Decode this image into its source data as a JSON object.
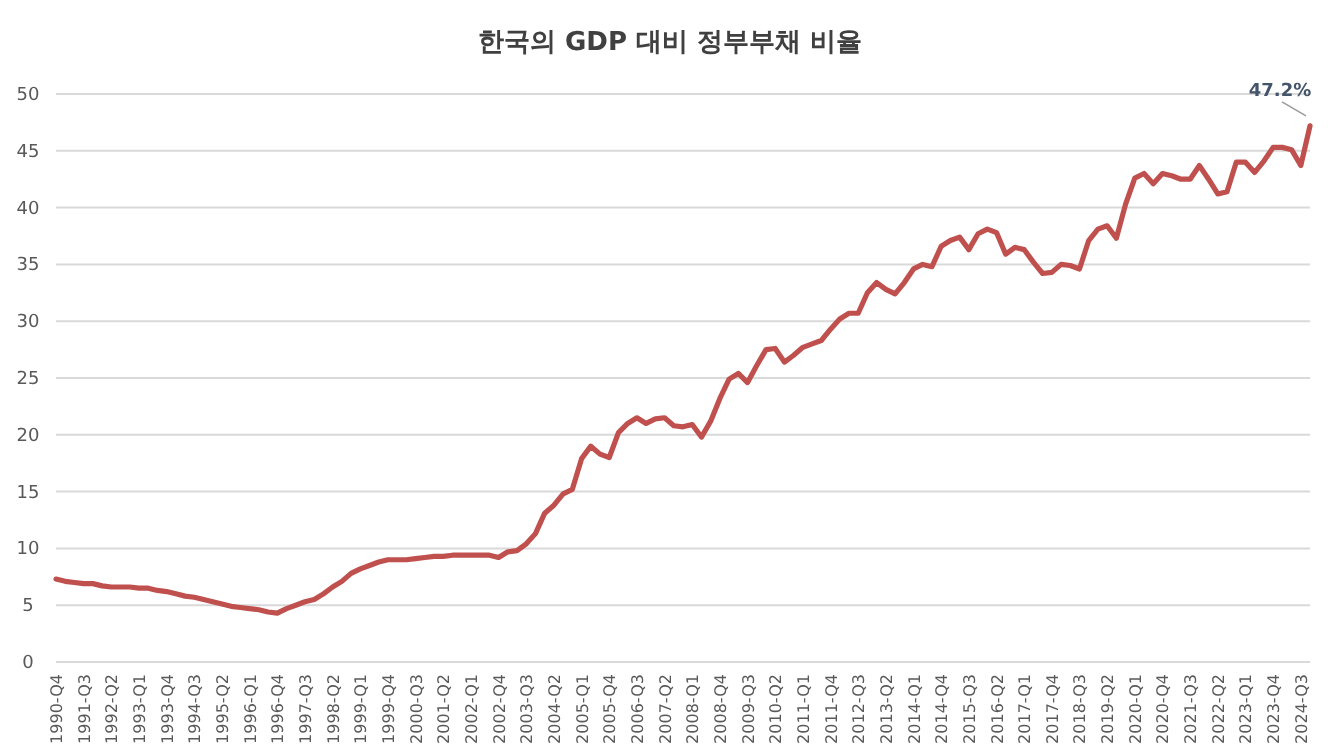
{
  "chart_data": {
    "type": "line",
    "title": "한국의 GDP 대비 정부부채 비율",
    "categories": [
      "1990-Q4",
      null,
      null,
      "1991-Q3",
      null,
      null,
      "1992-Q2",
      null,
      null,
      "1993-Q1",
      null,
      null,
      "1993-Q4",
      null,
      null,
      "1994-Q3",
      null,
      null,
      "1995-Q2",
      null,
      null,
      "1996-Q1",
      null,
      null,
      "1996-Q4",
      null,
      null,
      "1997-Q3",
      null,
      null,
      "1998-Q2",
      null,
      null,
      "1999-Q1",
      null,
      null,
      "1999-Q4",
      null,
      null,
      "2000-Q3",
      null,
      null,
      "2001-Q2",
      null,
      null,
      "2002-Q1",
      null,
      null,
      "2002-Q4",
      null,
      null,
      "2003-Q3",
      null,
      null,
      "2004-Q2",
      null,
      null,
      "2005-Q1",
      null,
      null,
      "2005-Q4",
      null,
      null,
      "2006-Q3",
      null,
      null,
      "2007-Q2",
      null,
      null,
      "2008-Q1",
      null,
      null,
      "2008-Q4",
      null,
      null,
      "2009-Q3",
      null,
      null,
      "2010-Q2",
      null,
      null,
      "2011-Q1",
      null,
      null,
      "2011-Q4",
      null,
      null,
      "2012-Q3",
      null,
      null,
      "2013-Q2",
      null,
      null,
      "2014-Q1",
      null,
      null,
      "2014-Q4",
      null,
      null,
      "2015-Q3",
      null,
      null,
      "2016-Q2",
      null,
      null,
      "2017-Q1",
      null,
      null,
      "2017-Q4",
      null,
      null,
      "2018-Q3",
      null,
      null,
      "2019-Q2",
      null,
      null,
      "2020-Q1",
      null,
      null,
      "2020-Q4",
      null,
      null,
      "2021-Q3",
      null,
      null,
      "2022-Q2",
      null,
      null,
      "2023-Q1",
      null,
      null,
      "2023-Q4",
      null,
      null,
      "2024-Q3",
      null
    ],
    "series": [
      {
        "color": "#c0504d",
        "values": [
          7.3,
          7.1,
          7.0,
          6.9,
          6.9,
          6.7,
          6.6,
          6.6,
          6.6,
          6.5,
          6.5,
          6.3,
          6.2,
          6.0,
          5.8,
          5.7,
          5.5,
          5.3,
          5.1,
          4.9,
          4.8,
          4.7,
          4.6,
          4.4,
          4.3,
          4.7,
          5.0,
          5.3,
          5.5,
          6.0,
          6.6,
          7.1,
          7.8,
          8.2,
          8.5,
          8.8,
          9.0,
          9.0,
          9.0,
          9.1,
          9.2,
          9.3,
          9.3,
          9.4,
          9.4,
          9.4,
          9.4,
          9.4,
          9.2,
          9.7,
          9.8,
          10.4,
          11.3,
          13.1,
          13.8,
          14.8,
          15.2,
          17.9,
          19.0,
          18.3,
          18.0,
          20.2,
          21.0,
          21.5,
          21.0,
          21.4,
          21.5,
          20.8,
          20.7,
          20.9,
          19.8,
          21.2,
          23.2,
          24.9,
          25.4,
          24.6,
          26.1,
          27.5,
          27.6,
          26.4,
          27.0,
          27.7,
          28.0,
          28.3,
          29.3,
          30.2,
          30.7,
          30.7,
          32.5,
          33.4,
          32.8,
          32.4,
          33.4,
          34.6,
          35.0,
          34.8,
          36.6,
          37.1,
          37.4,
          36.3,
          37.7,
          38.1,
          37.8,
          35.9,
          36.5,
          36.3,
          35.2,
          34.2,
          34.3,
          35.0,
          34.9,
          34.6,
          37.1,
          38.1,
          38.4,
          37.3,
          40.3,
          42.6,
          43.0,
          42.1,
          43.0,
          42.8,
          42.5,
          42.5,
          43.7,
          42.5,
          41.2,
          41.4,
          44.0,
          44.0,
          43.1,
          44.1,
          45.3,
          45.3,
          45.1,
          43.7,
          47.2
        ],
        "value_labels": [
          null,
          null,
          null,
          null,
          null,
          null,
          null,
          null,
          null,
          null,
          null,
          null,
          null,
          null,
          null,
          null,
          null,
          null,
          null,
          null,
          null,
          null,
          null,
          null,
          null,
          null,
          null,
          null,
          null,
          null,
          null,
          null,
          null,
          null,
          null,
          null,
          null,
          null,
          null,
          null,
          null,
          null,
          null,
          null,
          null,
          null,
          null,
          null,
          null,
          null,
          null,
          null,
          null,
          null,
          null,
          null,
          null,
          null,
          null,
          null,
          null,
          null,
          null,
          null,
          null,
          null,
          null,
          null,
          null,
          null,
          null,
          null,
          null,
          null,
          null,
          null,
          null,
          null,
          null,
          null,
          null,
          null,
          null,
          null,
          null,
          null,
          null,
          null,
          null,
          null,
          null,
          null,
          null,
          null,
          null,
          null,
          null,
          null,
          null,
          null,
          null,
          null,
          null,
          null,
          null,
          null,
          null,
          null,
          null,
          null,
          null,
          null,
          null,
          null,
          null,
          null,
          null,
          null,
          null,
          null,
          null,
          null,
          null,
          null,
          null,
          null,
          null,
          null,
          null,
          null,
          null,
          null,
          null,
          null,
          null,
          null,
          "47.2%"
        ]
      }
    ],
    "ylim": [
      0,
      50
    ],
    "yticks": [
      0,
      5,
      10,
      15,
      20,
      25,
      30,
      35,
      40,
      45,
      50
    ],
    "grid": "y"
  }
}
